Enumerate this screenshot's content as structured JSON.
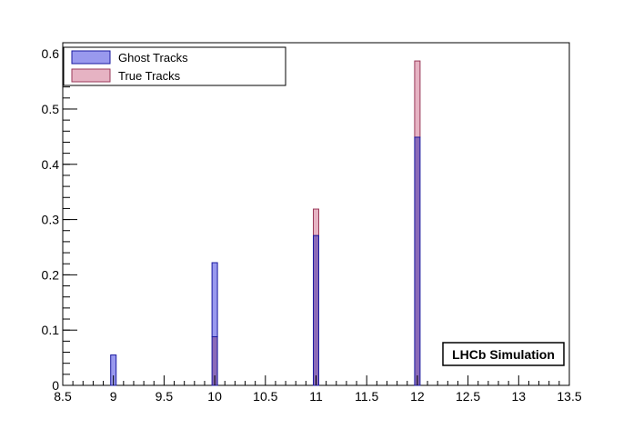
{
  "chart_data": {
    "type": "bar",
    "xlim": [
      8.5,
      13.5
    ],
    "ylim": [
      0,
      0.62
    ],
    "x_ticks": [
      8.5,
      9,
      9.5,
      10,
      10.5,
      11,
      11.5,
      12,
      12.5,
      13,
      13.5
    ],
    "y_ticks": [
      0,
      0.1,
      0.2,
      0.3,
      0.4,
      0.5,
      0.6
    ],
    "x_tick_labels": [
      "8.5",
      "9",
      "9.5",
      "10",
      "10.5",
      "11",
      "11.5",
      "12",
      "12.5",
      "13",
      "13.5"
    ],
    "y_tick_labels": [
      "0",
      "0.1",
      "0.2",
      "0.3",
      "0.4",
      "0.5",
      "0.6"
    ],
    "grid": false,
    "legend_position": "top-left",
    "categories": [
      9,
      10,
      11,
      12
    ],
    "series": [
      {
        "name": "Ghost Tracks",
        "values": [
          0.055,
          0.222,
          0.271,
          0.449
        ],
        "color": "#9999ee",
        "edge": "#1a1aa0"
      },
      {
        "name": "True Tracks",
        "values": [
          0.0,
          0.088,
          0.319,
          0.587
        ],
        "color": "#e6b3c3",
        "edge": "#9a3a5a"
      }
    ],
    "overlap_color": "#8a6ab8",
    "annotation": "LHCb Simulation"
  }
}
